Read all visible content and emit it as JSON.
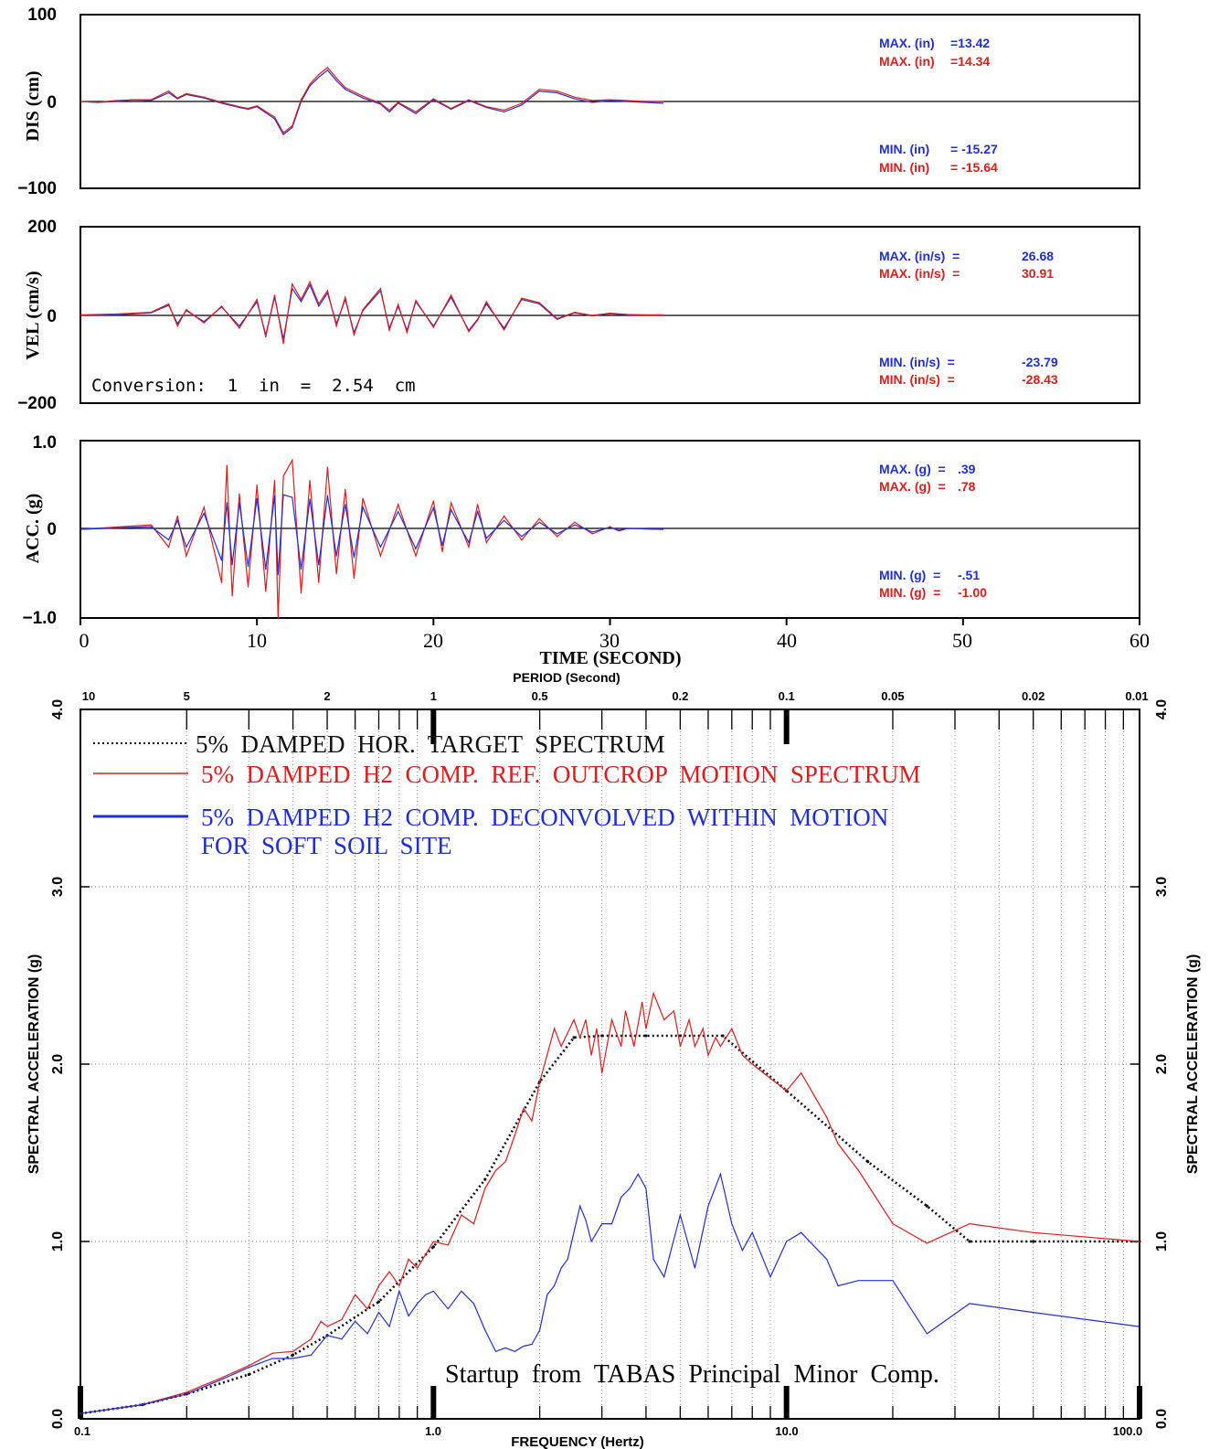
{
  "chart_data": [
    {
      "type": "line",
      "ylabel": "DIS (cm)",
      "yticks": [
        "100",
        "0",
        "−100"
      ],
      "ylim": [
        -100,
        100
      ],
      "xlim": [
        0,
        60
      ],
      "series": [
        {
          "color": "#1f2fd8",
          "x": [
            0,
            1,
            2,
            3,
            4,
            5,
            5.5,
            6,
            7,
            8,
            9,
            9.5,
            10,
            11,
            11.5,
            12,
            12.5,
            13,
            13.5,
            14,
            14.5,
            15,
            16,
            17,
            17.5,
            18,
            19,
            20,
            21,
            22,
            23,
            24,
            25,
            26,
            27,
            28,
            29,
            30,
            31,
            32,
            33
          ],
          "values": [
            0,
            -1,
            0,
            2,
            1,
            10,
            3,
            8,
            4,
            -2,
            -7,
            -9,
            -6,
            -20,
            -38,
            -30,
            0,
            18,
            28,
            36,
            24,
            14,
            4,
            -3,
            -12,
            -2,
            -14,
            2,
            -9,
            1,
            -7,
            -12,
            -4,
            12,
            10,
            3,
            -1,
            1,
            0,
            -1,
            -2
          ]
        },
        {
          "color": "#e21b1b",
          "x": [
            0,
            1,
            2,
            3,
            4,
            5,
            5.5,
            6,
            7,
            8,
            9,
            9.5,
            10,
            11,
            11.5,
            12,
            12.5,
            13,
            13.5,
            14,
            14.5,
            15,
            16,
            17,
            17.5,
            18,
            19,
            20,
            21,
            22,
            23,
            24,
            25,
            26,
            27,
            28,
            29,
            30,
            31,
            32,
            33
          ],
          "values": [
            0,
            -1,
            1,
            2,
            2,
            12,
            4,
            9,
            5,
            -1,
            -6,
            -8,
            -5,
            -18,
            -36,
            -28,
            2,
            20,
            31,
            39,
            27,
            16,
            6,
            -2,
            -10,
            -1,
            -12,
            3,
            -8,
            2,
            -6,
            -10,
            -2,
            14,
            12,
            5,
            1,
            2,
            1,
            0,
            0
          ]
        }
      ],
      "annotations": [
        {
          "label": "MAX. (in)",
          "value": "=13.42",
          "color": "#1f2fd8"
        },
        {
          "label": "MAX. (in)",
          "value": "=14.34",
          "color": "#e21b1b"
        },
        {
          "label": "MIN. (in)",
          "value": "= -15.27",
          "color": "#1f2fd8"
        },
        {
          "label": "MIN. (in)",
          "value": "= -15.64",
          "color": "#e21b1b"
        }
      ]
    },
    {
      "type": "line",
      "ylabel": "VEL (cm/s)",
      "yticks": [
        "200",
        "0",
        "−200"
      ],
      "ylim": [
        -200,
        200
      ],
      "xlim": [
        0,
        60
      ],
      "note": "Conversion:  1  in  =  2.54  cm",
      "series": [
        {
          "color": "#1f2fd8",
          "x": [
            0,
            2,
            4,
            5,
            5.5,
            6,
            7,
            8,
            9,
            10,
            10.5,
            11,
            11.5,
            12,
            12.5,
            13,
            13.5,
            14,
            14.5,
            15,
            15.5,
            16,
            17,
            17.5,
            18,
            18.5,
            19,
            20,
            21,
            22,
            22.5,
            23,
            24,
            25,
            26,
            27,
            28,
            29,
            30,
            31,
            32,
            33
          ],
          "values": [
            0,
            0,
            5,
            22,
            -20,
            10,
            -15,
            18,
            -25,
            30,
            -45,
            40,
            -55,
            60,
            30,
            68,
            20,
            50,
            -20,
            35,
            -40,
            10,
            55,
            -30,
            20,
            -35,
            30,
            -25,
            40,
            -35,
            -10,
            25,
            -30,
            35,
            25,
            -10,
            5,
            -2,
            3,
            0,
            0,
            0
          ]
        },
        {
          "color": "#e21b1b",
          "x": [
            0,
            2,
            4,
            5,
            5.5,
            6,
            7,
            8,
            9,
            10,
            10.5,
            11,
            11.5,
            12,
            12.5,
            13,
            13.5,
            14,
            14.5,
            15,
            15.5,
            16,
            17,
            17.5,
            18,
            18.5,
            19,
            20,
            21,
            22,
            22.5,
            23,
            24,
            25,
            26,
            27,
            28,
            29,
            30,
            31,
            32,
            33
          ],
          "values": [
            0,
            2,
            6,
            25,
            -25,
            12,
            -18,
            20,
            -30,
            35,
            -50,
            45,
            -65,
            70,
            35,
            75,
            25,
            55,
            -25,
            40,
            -45,
            12,
            60,
            -35,
            24,
            -40,
            33,
            -28,
            45,
            -38,
            -12,
            30,
            -34,
            38,
            28,
            -8,
            6,
            -1,
            4,
            1,
            0,
            0
          ]
        }
      ],
      "annotations": [
        {
          "label": "MAX. (in/s)  =",
          "value": "26.68",
          "color": "#1f2fd8"
        },
        {
          "label": "MAX. (in/s)  =",
          "value": "30.91",
          "color": "#e21b1b"
        },
        {
          "label": "MIN. (in/s)  =",
          "value": "-23.79",
          "color": "#1f2fd8"
        },
        {
          "label": "MIN. (in/s)  =",
          "value": "-28.43",
          "color": "#e21b1b"
        }
      ]
    },
    {
      "type": "line",
      "ylabel": "ACC. (g)",
      "yticks": [
        "1.0",
        "0",
        "−1.0"
      ],
      "ylim": [
        -1.0,
        1.0
      ],
      "xlim": [
        0,
        60
      ],
      "xlabel": "TIME (SECOND)",
      "xticks": [
        "0",
        "10",
        "20",
        "30",
        "40",
        "50",
        "60"
      ],
      "series": [
        {
          "color": "#e21b1b",
          "x": [
            0,
            4,
            5,
            5.5,
            6,
            7,
            8,
            8.3,
            8.6,
            9,
            9.5,
            10,
            10.5,
            11,
            11.2,
            11.5,
            12,
            12.5,
            13,
            13.5,
            14,
            14.5,
            15,
            15.5,
            16,
            17,
            18,
            19,
            20,
            20.5,
            21,
            22,
            22.5,
            23,
            24,
            25,
            26,
            27,
            28,
            29,
            30,
            30.5,
            31,
            33
          ],
          "values": [
            0,
            0.05,
            -0.2,
            0.15,
            -0.3,
            0.25,
            -0.6,
            0.72,
            -0.75,
            0.4,
            -0.65,
            0.5,
            -0.7,
            0.55,
            -1.0,
            0.6,
            0.78,
            -0.72,
            0.55,
            -0.6,
            0.7,
            -0.5,
            0.45,
            -0.55,
            0.35,
            -0.3,
            0.28,
            -0.3,
            0.32,
            -0.25,
            0.3,
            -0.2,
            0.28,
            -0.15,
            0.15,
            -0.12,
            0.12,
            -0.08,
            0.08,
            -0.05,
            0.03,
            -0.02,
            0.01,
            0
          ]
        },
        {
          "color": "#1f2fd8",
          "x": [
            0,
            4,
            5,
            5.5,
            6,
            7,
            8,
            8.3,
            8.6,
            9,
            9.5,
            10,
            10.5,
            11,
            11.2,
            11.5,
            12,
            12.5,
            13,
            13.5,
            14,
            14.5,
            15,
            15.5,
            16,
            17,
            18,
            19,
            20,
            20.5,
            21,
            22,
            22.5,
            23,
            24,
            25,
            26,
            27,
            28,
            29,
            30,
            30.5,
            31,
            33
          ],
          "values": [
            0,
            0.03,
            -0.12,
            0.1,
            -0.2,
            0.18,
            -0.35,
            0.3,
            -0.4,
            0.3,
            -0.42,
            0.35,
            -0.45,
            0.38,
            -0.51,
            0.39,
            0.36,
            -0.45,
            0.34,
            -0.4,
            0.38,
            -0.3,
            0.28,
            -0.32,
            0.25,
            -0.2,
            0.2,
            -0.22,
            0.24,
            -0.18,
            0.22,
            -0.15,
            0.2,
            -0.1,
            0.1,
            -0.08,
            0.08,
            -0.05,
            0.05,
            -0.03,
            0.02,
            -0.01,
            0.01,
            0
          ]
        }
      ],
      "annotations": [
        {
          "label": "MAX. (g)  =",
          "value": ".39",
          "color": "#1f2fd8"
        },
        {
          "label": "MAX. (g)  =",
          "value": ".78",
          "color": "#e21b1b"
        },
        {
          "label": "MIN. (g)  =",
          "value": "-.51",
          "color": "#1f2fd8"
        },
        {
          "label": "MIN. (g)  =",
          "value": "-1.00",
          "color": "#e21b1b"
        }
      ]
    },
    {
      "type": "line",
      "xscale": "log",
      "xlim": [
        0.1,
        100
      ],
      "ylim": [
        0,
        4
      ],
      "xlabel": "FREQUENCY (Hertz)",
      "ylabel": "SPECTRAL ACCELERATION (g)",
      "ylabel_right": "SPECTRAL ACCELERATION (g)",
      "top_axis_label": "PERIOD (Second)",
      "xticks": [
        "0.1",
        "1.0",
        "10.0",
        "100.0"
      ],
      "top_ticks": [
        {
          "label": "10",
          "f": 0.1
        },
        {
          "label": "5",
          "f": 0.2
        },
        {
          "label": "2",
          "f": 0.5
        },
        {
          "label": "1",
          "f": 1
        },
        {
          "label": "0.5",
          "f": 2
        },
        {
          "label": "0.2",
          "f": 5
        },
        {
          "label": "0.1",
          "f": 10
        },
        {
          "label": "0.05",
          "f": 20
        },
        {
          "label": "0.02",
          "f": 50
        },
        {
          "label": "0.01",
          "f": 100
        }
      ],
      "yticks": [
        "0.0",
        "1.0",
        "2.0",
        "3.0",
        "4.0"
      ],
      "legend": [
        "5%  DAMPED  HOR.  TARGET  SPECTRUM",
        "5%  DAMPED  H2  COMP.  REF.  OUTCROP  MOTION  SPECTRUM",
        "5%  DAMPED  H2  COMP.  DECONVOLVED  WITHIN  MOTION",
        "FOR  SOFT  SOIL  SITE"
      ],
      "annotation": "Startup  from  TABAS  Principal  Minor  Comp.",
      "series": [
        {
          "name": "5%  DAMPED  HOR.  TARGET  SPECTRUM",
          "color": "#111111",
          "style": "dotted",
          "x": [
            0.1,
            0.15,
            0.2,
            0.3,
            0.4,
            0.5,
            0.7,
            1.0,
            1.4,
            2.0,
            2.5,
            3.0,
            4.0,
            5.0,
            6.6,
            10.0,
            17.0,
            25.0,
            33.0,
            50.0,
            100.0
          ],
          "values": [
            0.03,
            0.08,
            0.14,
            0.25,
            0.36,
            0.47,
            0.66,
            0.97,
            1.35,
            1.9,
            2.15,
            2.16,
            2.16,
            2.16,
            2.16,
            1.85,
            1.45,
            1.2,
            1.0,
            1.0,
            1.0
          ]
        },
        {
          "name": "5%  DAMPED  H2  COMP.  REF.  OUTCROP  MOTION  SPECTRUM",
          "color": "#e21b1b",
          "style": "solid",
          "x": [
            0.1,
            0.15,
            0.2,
            0.25,
            0.3,
            0.35,
            0.4,
            0.45,
            0.48,
            0.5,
            0.55,
            0.6,
            0.65,
            0.7,
            0.75,
            0.8,
            0.85,
            0.9,
            1.0,
            1.1,
            1.2,
            1.3,
            1.4,
            1.5,
            1.6,
            1.7,
            1.8,
            1.9,
            2.0,
            2.2,
            2.3,
            2.5,
            2.6,
            2.7,
            2.8,
            2.9,
            3.0,
            3.2,
            3.4,
            3.5,
            3.7,
            3.9,
            4.0,
            4.2,
            4.5,
            4.8,
            5.0,
            5.3,
            5.5,
            5.8,
            6.0,
            6.3,
            6.5,
            7.0,
            7.5,
            8.0,
            9.0,
            10.0,
            11.0,
            13.0,
            14.0,
            16.0,
            20.0,
            25.0,
            33.0,
            50.0,
            100.0
          ],
          "values": [
            0.03,
            0.08,
            0.15,
            0.23,
            0.3,
            0.37,
            0.38,
            0.45,
            0.55,
            0.52,
            0.56,
            0.7,
            0.62,
            0.75,
            0.83,
            0.75,
            0.9,
            0.85,
            1.0,
            0.98,
            1.15,
            1.1,
            1.3,
            1.4,
            1.45,
            1.6,
            1.75,
            1.68,
            1.9,
            2.2,
            2.1,
            2.25,
            2.15,
            2.25,
            2.05,
            2.2,
            1.95,
            2.25,
            2.1,
            2.3,
            2.1,
            2.35,
            2.2,
            2.4,
            2.25,
            2.3,
            2.1,
            2.25,
            2.1,
            2.2,
            2.05,
            2.15,
            2.1,
            2.2,
            2.05,
            2.0,
            1.92,
            1.85,
            1.95,
            1.7,
            1.55,
            1.4,
            1.1,
            0.99,
            1.1,
            1.05,
            1.0
          ]
        },
        {
          "name": "5%  DAMPED  H2  COMP.  DECONVOLVED  WITHIN  MOTION",
          "color": "#1f2fd8",
          "style": "solid",
          "x": [
            0.1,
            0.15,
            0.2,
            0.25,
            0.3,
            0.35,
            0.4,
            0.45,
            0.5,
            0.55,
            0.6,
            0.65,
            0.7,
            0.75,
            0.8,
            0.85,
            0.9,
            0.95,
            1.0,
            1.1,
            1.2,
            1.3,
            1.4,
            1.5,
            1.6,
            1.7,
            1.8,
            1.9,
            2.0,
            2.1,
            2.2,
            2.3,
            2.4,
            2.6,
            2.7,
            2.8,
            3.0,
            3.2,
            3.4,
            3.6,
            3.8,
            4.0,
            4.2,
            4.5,
            5.0,
            5.5,
            6.0,
            6.5,
            7.0,
            7.5,
            8.0,
            9.0,
            10.0,
            11.0,
            13.0,
            14.0,
            16.0,
            20.0,
            25.0,
            33.0,
            50.0,
            100.0
          ],
          "values": [
            0.03,
            0.08,
            0.14,
            0.22,
            0.29,
            0.34,
            0.34,
            0.36,
            0.47,
            0.45,
            0.55,
            0.48,
            0.6,
            0.52,
            0.72,
            0.58,
            0.65,
            0.7,
            0.72,
            0.62,
            0.72,
            0.65,
            0.5,
            0.38,
            0.4,
            0.38,
            0.41,
            0.42,
            0.5,
            0.7,
            0.75,
            0.85,
            0.9,
            1.2,
            1.12,
            1.0,
            1.1,
            1.1,
            1.25,
            1.3,
            1.38,
            1.3,
            0.9,
            0.8,
            1.15,
            0.85,
            1.2,
            1.38,
            1.1,
            0.95,
            1.05,
            0.8,
            1.0,
            1.05,
            0.9,
            0.75,
            0.78,
            0.78,
            0.48,
            0.65,
            0.6,
            0.52
          ]
        }
      ]
    }
  ]
}
